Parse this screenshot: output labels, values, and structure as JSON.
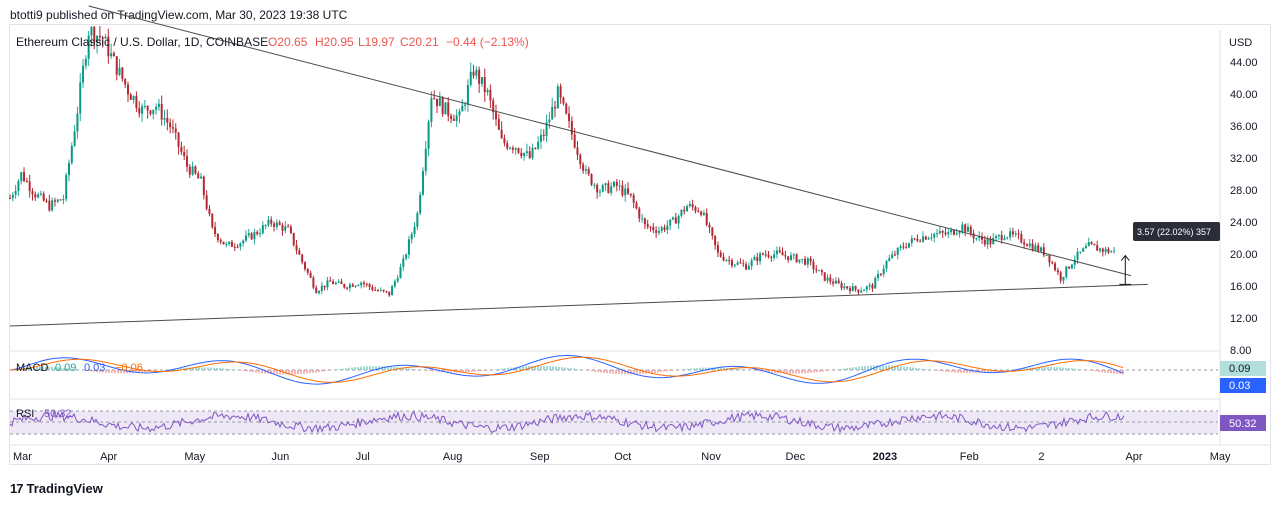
{
  "header": {
    "published": "btotti9 published on TradingView.com, Mar 30, 2023 19:38 UTC"
  },
  "footer": {
    "brand": "TradingView",
    "logo_icon": "tradingview-logo-icon"
  },
  "colors": {
    "up": "#26a69a",
    "down": "#ef5350",
    "up_candle": "#089981",
    "down_candle": "#b22833",
    "macd_line": "#2962ff",
    "signal_line": "#ff6d00",
    "rsi_line": "#7e57c2",
    "rsi_band": "#ede7f6",
    "axis_text": "#131722",
    "grid": "#e0e3eb"
  },
  "chart_data": [
    {
      "type": "candlestick",
      "title": "Ethereum Classic / U.S. Dollar, 1D, COINBASE",
      "ohlc_label": {
        "o": "O20.65",
        "h": "H20.95",
        "l": "L19.97",
        "c": "C20.21",
        "chg": "−0.44 (−2.13%)"
      },
      "ylabel": "USD",
      "ylim": [
        8,
        48
      ],
      "y_ticks": [
        "44.00",
        "40.00",
        "36.00",
        "32.00",
        "28.00",
        "24.00",
        "20.00",
        "16.00",
        "12.00",
        "8.00"
      ],
      "x_ticks": [
        "Mar",
        "Apr",
        "May",
        "Jun",
        "Jul",
        "Aug",
        "Sep",
        "Oct",
        "Nov",
        "Dec",
        "2023",
        "Feb",
        "2",
        "Apr",
        "May"
      ],
      "series_close": [
        {
          "date": "2022-03-01",
          "close": 27.0
        },
        {
          "date": "2022-03-05",
          "close": 30.0
        },
        {
          "date": "2022-03-10",
          "close": 27.5
        },
        {
          "date": "2022-03-15",
          "close": 26.0
        },
        {
          "date": "2022-03-20",
          "close": 27.0
        },
        {
          "date": "2022-03-25",
          "close": 38.0
        },
        {
          "date": "2022-03-29",
          "close": 48.0
        },
        {
          "date": "2022-04-03",
          "close": 47.0
        },
        {
          "date": "2022-04-07",
          "close": 44.0
        },
        {
          "date": "2022-04-12",
          "close": 40.5
        },
        {
          "date": "2022-04-17",
          "close": 38.0
        },
        {
          "date": "2022-04-22",
          "close": 38.5
        },
        {
          "date": "2022-04-27",
          "close": 36.0
        },
        {
          "date": "2022-05-03",
          "close": 31.0
        },
        {
          "date": "2022-05-08",
          "close": 29.0
        },
        {
          "date": "2022-05-12",
          "close": 23.0
        },
        {
          "date": "2022-05-17",
          "close": 21.0
        },
        {
          "date": "2022-05-22",
          "close": 21.5
        },
        {
          "date": "2022-05-27",
          "close": 22.5
        },
        {
          "date": "2022-06-02",
          "close": 24.0
        },
        {
          "date": "2022-06-08",
          "close": 23.0
        },
        {
          "date": "2022-06-13",
          "close": 19.0
        },
        {
          "date": "2022-06-18",
          "close": 15.5
        },
        {
          "date": "2022-06-23",
          "close": 16.5
        },
        {
          "date": "2022-06-28",
          "close": 16.0
        },
        {
          "date": "2022-07-04",
          "close": 16.5
        },
        {
          "date": "2022-07-09",
          "close": 15.5
        },
        {
          "date": "2022-07-14",
          "close": 15.0
        },
        {
          "date": "2022-07-19",
          "close": 19.0
        },
        {
          "date": "2022-07-24",
          "close": 25.0
        },
        {
          "date": "2022-07-29",
          "close": 40.0
        },
        {
          "date": "2022-08-03",
          "close": 38.0
        },
        {
          "date": "2022-08-08",
          "close": 37.0
        },
        {
          "date": "2022-08-13",
          "close": 43.0
        },
        {
          "date": "2022-08-18",
          "close": 40.0
        },
        {
          "date": "2022-08-23",
          "close": 34.0
        },
        {
          "date": "2022-08-28",
          "close": 33.5
        },
        {
          "date": "2022-09-02",
          "close": 32.0
        },
        {
          "date": "2022-09-07",
          "close": 35.0
        },
        {
          "date": "2022-09-12",
          "close": 40.0
        },
        {
          "date": "2022-09-17",
          "close": 35.0
        },
        {
          "date": "2022-09-22",
          "close": 30.0
        },
        {
          "date": "2022-09-27",
          "close": 28.0
        },
        {
          "date": "2022-10-03",
          "close": 28.5
        },
        {
          "date": "2022-10-08",
          "close": 27.0
        },
        {
          "date": "2022-10-13",
          "close": 23.5
        },
        {
          "date": "2022-10-18",
          "close": 23.0
        },
        {
          "date": "2022-10-23",
          "close": 24.0
        },
        {
          "date": "2022-10-28",
          "close": 26.0
        },
        {
          "date": "2022-11-02",
          "close": 25.5
        },
        {
          "date": "2022-11-08",
          "close": 20.0
        },
        {
          "date": "2022-11-13",
          "close": 19.0
        },
        {
          "date": "2022-11-18",
          "close": 18.5
        },
        {
          "date": "2022-11-24",
          "close": 20.0
        },
        {
          "date": "2022-11-29",
          "close": 20.0
        },
        {
          "date": "2022-12-05",
          "close": 19.5
        },
        {
          "date": "2022-12-10",
          "close": 19.0
        },
        {
          "date": "2022-12-16",
          "close": 17.0
        },
        {
          "date": "2022-12-22",
          "close": 16.0
        },
        {
          "date": "2022-12-28",
          "close": 15.5
        },
        {
          "date": "2023-01-02",
          "close": 16.0
        },
        {
          "date": "2023-01-07",
          "close": 19.0
        },
        {
          "date": "2023-01-13",
          "close": 21.0
        },
        {
          "date": "2023-01-18",
          "close": 22.0
        },
        {
          "date": "2023-01-24",
          "close": 22.5
        },
        {
          "date": "2023-01-29",
          "close": 22.5
        },
        {
          "date": "2023-02-03",
          "close": 23.5
        },
        {
          "date": "2023-02-08",
          "close": 22.0
        },
        {
          "date": "2023-02-13",
          "close": 21.5
        },
        {
          "date": "2023-02-18",
          "close": 22.5
        },
        {
          "date": "2023-02-23",
          "close": 22.0
        },
        {
          "date": "2023-02-28",
          "close": 21.0
        },
        {
          "date": "2023-03-05",
          "close": 20.0
        },
        {
          "date": "2023-03-10",
          "close": 17.0
        },
        {
          "date": "2023-03-15",
          "close": 19.5
        },
        {
          "date": "2023-03-20",
          "close": 21.0
        },
        {
          "date": "2023-03-25",
          "close": 20.5
        },
        {
          "date": "2023-03-30",
          "close": 20.2
        }
      ],
      "trendlines": [
        {
          "name": "descending-resistance",
          "from": {
            "date": "2022-03-29",
            "price": 51.0
          },
          "to": {
            "date": "2023-04-04",
            "price": 17.3
          }
        },
        {
          "name": "ascending-support",
          "from": {
            "date": "2022-03-01",
            "price": 11.0
          },
          "to": {
            "date": "2023-04-10",
            "price": 16.2
          }
        }
      ],
      "measure": {
        "label": "3.57 (22.02%) 357",
        "from_price": 16.2,
        "to_price": 19.8,
        "date": "2023-04-02"
      },
      "current_price_label": "",
      "grid": false
    },
    {
      "type": "line",
      "title": "MACD",
      "legend": {
        "label": "MACD",
        "v1": "0.09",
        "v2": "0.03",
        "v3": "−0.06"
      },
      "last_values": {
        "macd": "0.09",
        "signal": "0.03"
      },
      "note": "oscillates around zero; histogram bars shown"
    },
    {
      "type": "line",
      "title": "RSI",
      "legend": {
        "label": "RSI",
        "value": "50.32"
      },
      "last_value": "50.32",
      "band": [
        30,
        70
      ]
    }
  ]
}
